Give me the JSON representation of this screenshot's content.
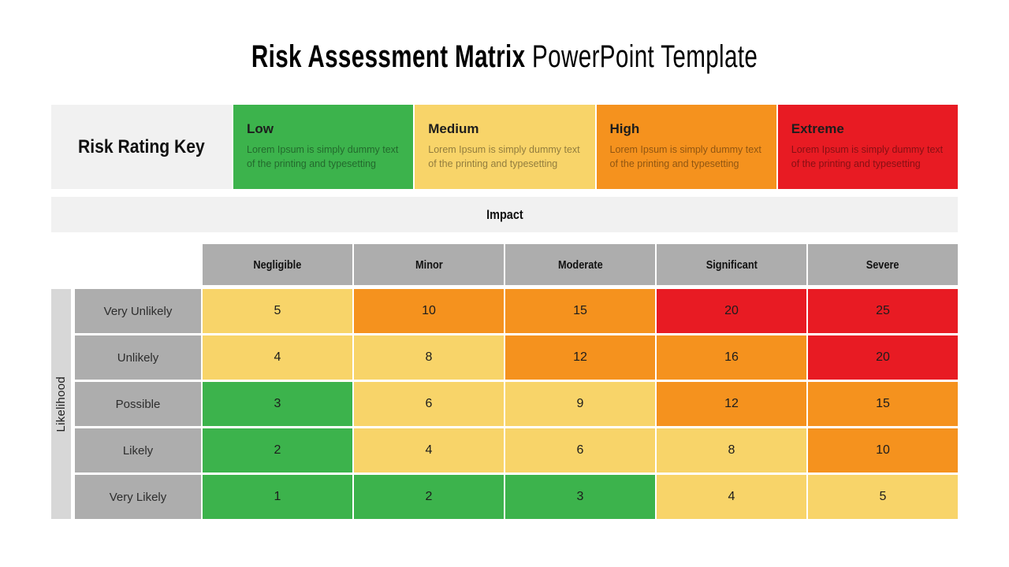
{
  "title": {
    "main": "Risk Assessment Matrix",
    "suffix": "PowerPoint Template"
  },
  "risk_rating_key": {
    "label": "Risk Rating Key",
    "items": [
      {
        "name": "Low",
        "description": "Lorem Ipsum is simply dummy text of the printing and typesetting",
        "level": "green"
      },
      {
        "name": "Medium",
        "description": "Lorem Ipsum is simply dummy text of the printing and typesetting",
        "level": "yellow"
      },
      {
        "name": "High",
        "description": "Lorem Ipsum is simply dummy text of the printing and typesetting",
        "level": "orange"
      },
      {
        "name": "Extreme",
        "description": "Lorem Ipsum is simply dummy text of the printing and typesetting",
        "level": "red"
      }
    ]
  },
  "impact_label": "Impact",
  "likelihood_label": "Likelihood",
  "matrix": {
    "columns": [
      "Negligible",
      "Minor",
      "Moderate",
      "Significant",
      "Severe"
    ],
    "rows": [
      {
        "label": "Very Unlikely",
        "values": [
          5,
          10,
          15,
          20,
          25
        ],
        "levels": [
          "yellow",
          "orange",
          "orange",
          "red",
          "red"
        ]
      },
      {
        "label": "Unlikely",
        "values": [
          4,
          8,
          12,
          16,
          20
        ],
        "levels": [
          "yellow",
          "yellow",
          "orange",
          "orange",
          "red"
        ]
      },
      {
        "label": "Possible",
        "values": [
          3,
          6,
          9,
          12,
          15
        ],
        "levels": [
          "green",
          "yellow",
          "yellow",
          "orange",
          "orange"
        ]
      },
      {
        "label": "Likely",
        "values": [
          2,
          4,
          6,
          8,
          10
        ],
        "levels": [
          "green",
          "yellow",
          "yellow",
          "yellow",
          "orange"
        ]
      },
      {
        "label": "Very Likely",
        "values": [
          1,
          2,
          3,
          4,
          5
        ],
        "levels": [
          "green",
          "green",
          "green",
          "yellow",
          "yellow"
        ]
      }
    ]
  },
  "colors": {
    "green": "#3cb34c",
    "yellow": "#f8d469",
    "orange": "#f5921e",
    "red": "#e81b23",
    "header_gray": "#adadad",
    "light_gray": "#f1f1f1",
    "likelihood_strip_gray": "#d7d7d7"
  }
}
